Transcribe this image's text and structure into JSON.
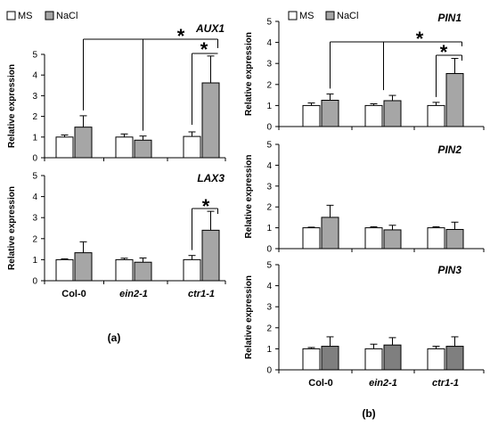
{
  "legend": {
    "ms": "MS",
    "nacl": "NaCl"
  },
  "colors": {
    "ms": "#ffffff",
    "nacl": "#a6a6a6",
    "nacl_dark": "#7f7f7f",
    "axis": "#000000"
  },
  "panel_labels": {
    "a": "(a)",
    "b": "(b)"
  },
  "significance_marker": "*",
  "chart_data": [
    {
      "type": "bar",
      "title": "AUX1",
      "ylabel": "Relative expression",
      "ylim": [
        0,
        5
      ],
      "yticks": [
        "0",
        "1",
        "2",
        "3",
        "4",
        "5"
      ],
      "categories": [
        "Col-0",
        "ein2-1",
        "ctr1-1"
      ],
      "series": [
        {
          "name": "MS",
          "values": [
            1.0,
            1.0,
            1.03
          ],
          "errors": [
            0.1,
            0.15,
            0.22
          ]
        },
        {
          "name": "NaCl",
          "values": [
            1.48,
            0.85,
            3.62
          ],
          "errors": [
            0.55,
            0.2,
            1.3
          ]
        }
      ],
      "significance": [
        "*",
        "*"
      ]
    },
    {
      "type": "bar",
      "title": "LAX3",
      "ylabel": "Relative expression",
      "ylim": [
        0,
        5
      ],
      "yticks": [
        "0",
        "1",
        "2",
        "3",
        "4",
        "5"
      ],
      "categories": [
        "Col-0",
        "ein2-1",
        "ctr1-1"
      ],
      "series": [
        {
          "name": "MS",
          "values": [
            1.0,
            1.0,
            1.0
          ],
          "errors": [
            0.04,
            0.07,
            0.2
          ]
        },
        {
          "name": "NaCl",
          "values": [
            1.33,
            0.88,
            2.4
          ],
          "errors": [
            0.52,
            0.2,
            0.9
          ]
        }
      ],
      "significance": [
        "*"
      ]
    },
    {
      "type": "bar",
      "title": "PIN1",
      "ylabel": "Relative expression",
      "ylim": [
        0,
        5
      ],
      "yticks": [
        "0",
        "1",
        "2",
        "3",
        "4",
        "5"
      ],
      "categories": [
        "Col-0",
        "ein2-1",
        "ctr1-1"
      ],
      "series": [
        {
          "name": "MS",
          "values": [
            1.0,
            1.0,
            1.0
          ],
          "errors": [
            0.12,
            0.08,
            0.15
          ]
        },
        {
          "name": "NaCl",
          "values": [
            1.25,
            1.23,
            2.52
          ],
          "errors": [
            0.3,
            0.25,
            0.72
          ]
        }
      ],
      "significance": [
        "*",
        "*"
      ]
    },
    {
      "type": "bar",
      "title": "PIN2",
      "ylabel": "Relative expression",
      "ylim": [
        0,
        5
      ],
      "yticks": [
        "0",
        "1",
        "2",
        "3",
        "4",
        "5"
      ],
      "categories": [
        "Col-0",
        "ein2-1",
        "ctr1-1"
      ],
      "series": [
        {
          "name": "MS",
          "values": [
            1.0,
            1.0,
            1.0
          ],
          "errors": [
            0.03,
            0.05,
            0.05
          ]
        },
        {
          "name": "NaCl",
          "values": [
            1.5,
            0.9,
            0.92
          ],
          "errors": [
            0.58,
            0.22,
            0.35
          ]
        }
      ]
    },
    {
      "type": "bar",
      "title": "PIN3",
      "ylabel": "Relative expression",
      "ylim": [
        0,
        5
      ],
      "yticks": [
        "0",
        "1",
        "2",
        "3",
        "4",
        "5"
      ],
      "categories": [
        "Col-0",
        "ein2-1",
        "ctr1-1"
      ],
      "series": [
        {
          "name": "MS",
          "values": [
            1.0,
            1.0,
            1.0
          ],
          "errors": [
            0.06,
            0.22,
            0.12
          ]
        },
        {
          "name": "NaCl",
          "values": [
            1.12,
            1.18,
            1.12
          ],
          "errors": [
            0.45,
            0.35,
            0.45
          ]
        }
      ]
    }
  ]
}
